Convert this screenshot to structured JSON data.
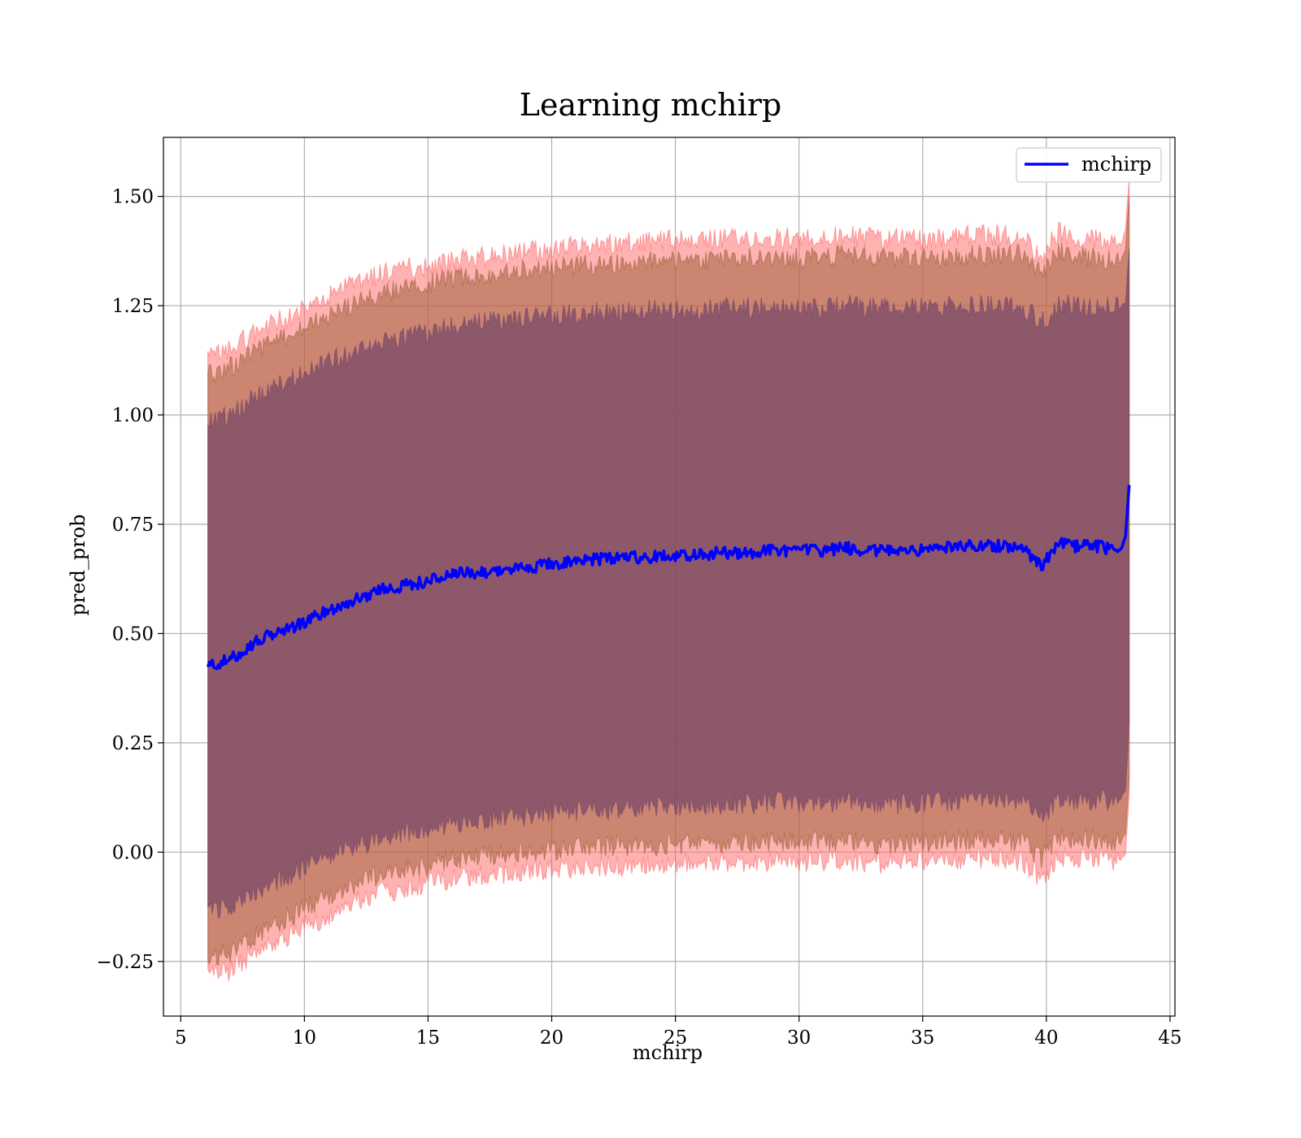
{
  "chart_data": {
    "type": "line",
    "title": "Learning mchirp",
    "xlabel": "mchirp",
    "ylabel": "pred_prob",
    "xlim": [
      4.3,
      45.2
    ],
    "ylim": [
      -0.375,
      1.635
    ],
    "xticks": [
      5,
      10,
      15,
      20,
      25,
      30,
      35,
      40,
      45
    ],
    "yticks": [
      -0.25,
      0.0,
      0.25,
      0.5,
      0.75,
      1.0,
      1.25,
      1.5
    ],
    "ytick_labels": [
      "−0.25",
      "0.00",
      "0.25",
      "0.50",
      "0.75",
      "1.00",
      "1.25",
      "1.50"
    ],
    "xtick_labels": [
      "5",
      "10",
      "15",
      "20",
      "25",
      "30",
      "35",
      "40",
      "45"
    ],
    "grid": true,
    "legend_position": "top-right",
    "series": [
      {
        "name": "mchirp",
        "color": "#0000ff",
        "x": [
          6.1,
          7,
          8,
          9,
          10,
          11,
          12,
          13,
          14,
          15,
          16,
          17,
          18,
          19,
          20,
          21,
          22,
          23,
          24,
          25,
          26,
          27,
          28,
          29,
          30,
          31,
          32,
          33,
          34,
          35,
          36,
          37,
          38,
          39,
          39.8,
          40.5,
          41,
          42,
          43.0,
          43.2,
          43.35
        ],
        "y": [
          0.425,
          0.44,
          0.48,
          0.505,
          0.525,
          0.555,
          0.575,
          0.6,
          0.61,
          0.62,
          0.635,
          0.64,
          0.645,
          0.65,
          0.66,
          0.665,
          0.67,
          0.675,
          0.675,
          0.68,
          0.68,
          0.685,
          0.685,
          0.69,
          0.69,
          0.69,
          0.695,
          0.69,
          0.69,
          0.69,
          0.695,
          0.7,
          0.7,
          0.7,
          0.655,
          0.705,
          0.7,
          0.7,
          0.69,
          0.72,
          0.84
        ]
      }
    ],
    "bands": [
      {
        "name": "",
        "color": "#ff6666",
        "x": [
          6.1,
          7,
          8,
          9,
          10,
          11,
          12,
          13,
          14,
          15,
          16,
          17,
          18,
          19,
          20,
          21,
          22,
          23,
          24,
          25,
          26,
          27,
          28,
          29,
          30,
          31,
          32,
          33,
          34,
          35,
          36,
          37,
          38,
          39,
          39.8,
          40.5,
          41,
          42,
          43.0,
          43.2,
          43.35
        ],
        "upper": [
          1.13,
          1.15,
          1.19,
          1.215,
          1.24,
          1.27,
          1.3,
          1.32,
          1.335,
          1.34,
          1.35,
          1.36,
          1.37,
          1.375,
          1.38,
          1.385,
          1.39,
          1.395,
          1.395,
          1.4,
          1.4,
          1.405,
          1.405,
          1.405,
          1.405,
          1.405,
          1.41,
          1.405,
          1.405,
          1.4,
          1.405,
          1.41,
          1.41,
          1.41,
          1.36,
          1.42,
          1.41,
          1.4,
          1.39,
          1.42,
          1.54
        ],
        "lower": [
          -0.28,
          -0.27,
          -0.23,
          -0.2,
          -0.17,
          -0.145,
          -0.115,
          -0.095,
          -0.085,
          -0.07,
          -0.06,
          -0.055,
          -0.05,
          -0.045,
          -0.04,
          -0.035,
          -0.03,
          -0.03,
          -0.03,
          -0.025,
          -0.025,
          -0.025,
          -0.025,
          -0.02,
          -0.02,
          -0.02,
          -0.02,
          -0.025,
          -0.025,
          -0.02,
          -0.02,
          -0.015,
          -0.015,
          -0.02,
          -0.06,
          -0.01,
          -0.01,
          -0.015,
          -0.02,
          0.0,
          0.13
        ]
      },
      {
        "name": "",
        "color": "#a0603a",
        "x": [
          6.1,
          7,
          8,
          9,
          10,
          11,
          12,
          13,
          14,
          15,
          16,
          17,
          18,
          19,
          20,
          21,
          22,
          23,
          24,
          25,
          26,
          27,
          28,
          29,
          30,
          31,
          32,
          33,
          34,
          35,
          36,
          37,
          38,
          39,
          39.8,
          40.5,
          41,
          42,
          43.0,
          43.2,
          43.35
        ],
        "upper": [
          1.09,
          1.11,
          1.145,
          1.17,
          1.2,
          1.225,
          1.255,
          1.275,
          1.29,
          1.3,
          1.31,
          1.32,
          1.325,
          1.33,
          1.335,
          1.34,
          1.345,
          1.35,
          1.35,
          1.355,
          1.355,
          1.36,
          1.36,
          1.36,
          1.36,
          1.36,
          1.365,
          1.36,
          1.36,
          1.36,
          1.36,
          1.365,
          1.365,
          1.365,
          1.32,
          1.375,
          1.365,
          1.36,
          1.35,
          1.38,
          1.5
        ],
        "lower": [
          -0.245,
          -0.23,
          -0.19,
          -0.16,
          -0.13,
          -0.1,
          -0.075,
          -0.055,
          -0.04,
          -0.03,
          -0.015,
          -0.01,
          -0.005,
          0.0,
          0.005,
          0.01,
          0.015,
          0.015,
          0.015,
          0.02,
          0.02,
          0.02,
          0.02,
          0.025,
          0.025,
          0.025,
          0.025,
          0.02,
          0.02,
          0.025,
          0.025,
          0.03,
          0.03,
          0.025,
          -0.015,
          0.035,
          0.03,
          0.03,
          0.02,
          0.04,
          0.17
        ]
      },
      {
        "name": "",
        "color": "#7a4a6a",
        "x": [
          6.1,
          7,
          8,
          9,
          10,
          11,
          12,
          13,
          14,
          15,
          16,
          17,
          18,
          19,
          20,
          21,
          22,
          23,
          24,
          25,
          26,
          27,
          28,
          29,
          30,
          31,
          32,
          33,
          34,
          35,
          36,
          37,
          38,
          39,
          39.8,
          40.5,
          41,
          42,
          43.0,
          43.2,
          43.35
        ],
        "upper": [
          0.985,
          1.0,
          1.04,
          1.07,
          1.095,
          1.12,
          1.145,
          1.165,
          1.18,
          1.19,
          1.2,
          1.21,
          1.215,
          1.22,
          1.225,
          1.23,
          1.235,
          1.235,
          1.24,
          1.24,
          1.24,
          1.245,
          1.245,
          1.245,
          1.245,
          1.245,
          1.25,
          1.245,
          1.245,
          1.245,
          1.25,
          1.25,
          1.25,
          1.25,
          1.21,
          1.255,
          1.25,
          1.245,
          1.245,
          1.26,
          1.38
        ],
        "lower": [
          -0.14,
          -0.125,
          -0.09,
          -0.06,
          -0.035,
          -0.01,
          0.015,
          0.03,
          0.045,
          0.055,
          0.065,
          0.075,
          0.08,
          0.085,
          0.09,
          0.095,
          0.1,
          0.1,
          0.105,
          0.105,
          0.11,
          0.11,
          0.11,
          0.115,
          0.115,
          0.115,
          0.115,
          0.11,
          0.11,
          0.115,
          0.115,
          0.12,
          0.12,
          0.12,
          0.08,
          0.125,
          0.12,
          0.12,
          0.12,
          0.14,
          0.3
        ]
      }
    ]
  }
}
